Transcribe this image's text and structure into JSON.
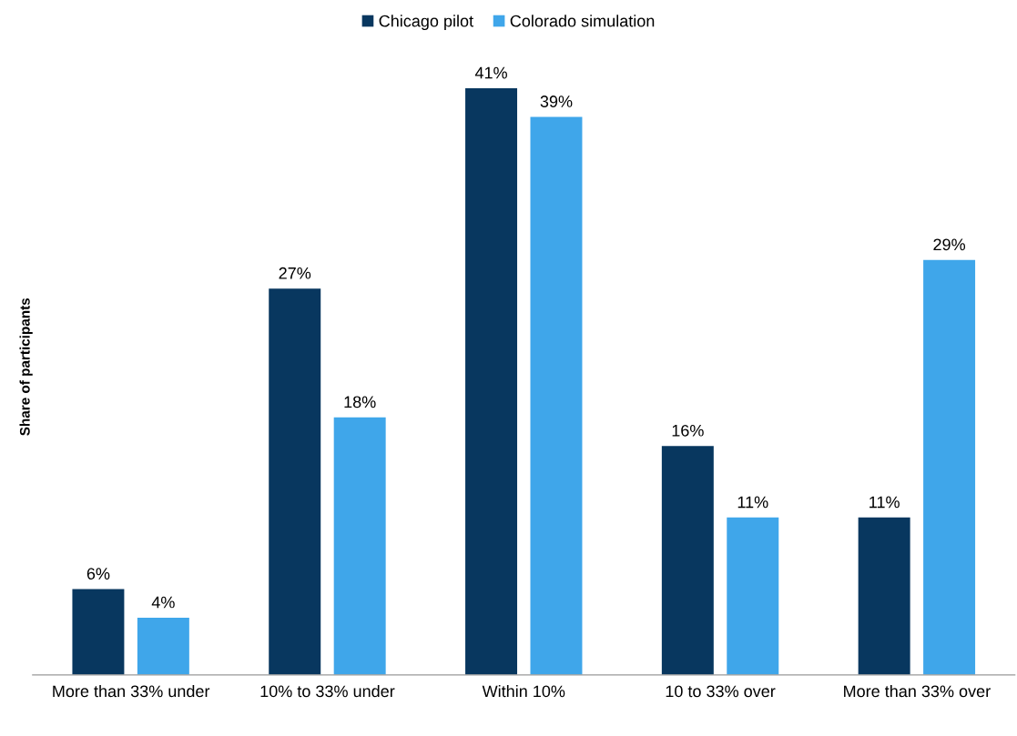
{
  "chart_data": {
    "type": "bar",
    "ylabel": "Share of participants",
    "categories": [
      "More than 33% under",
      "10% to 33% under",
      "Within 10%",
      "10 to 33% over",
      "More than 33% over"
    ],
    "series": [
      {
        "name": "Chicago pilot",
        "color": "#08375f",
        "values": [
          6,
          27,
          41,
          16,
          11
        ],
        "value_labels": [
          "6%",
          "27%",
          "41%",
          "16%",
          "11%"
        ]
      },
      {
        "name": "Colorado simulation",
        "color": "#3fa6ea",
        "values": [
          4,
          18,
          39,
          11,
          29
        ],
        "value_labels": [
          "4%",
          "18%",
          "39%",
          "11%",
          "29%"
        ]
      }
    ],
    "tick_labels": "x",
    "legend": "top",
    "grid": false
  }
}
